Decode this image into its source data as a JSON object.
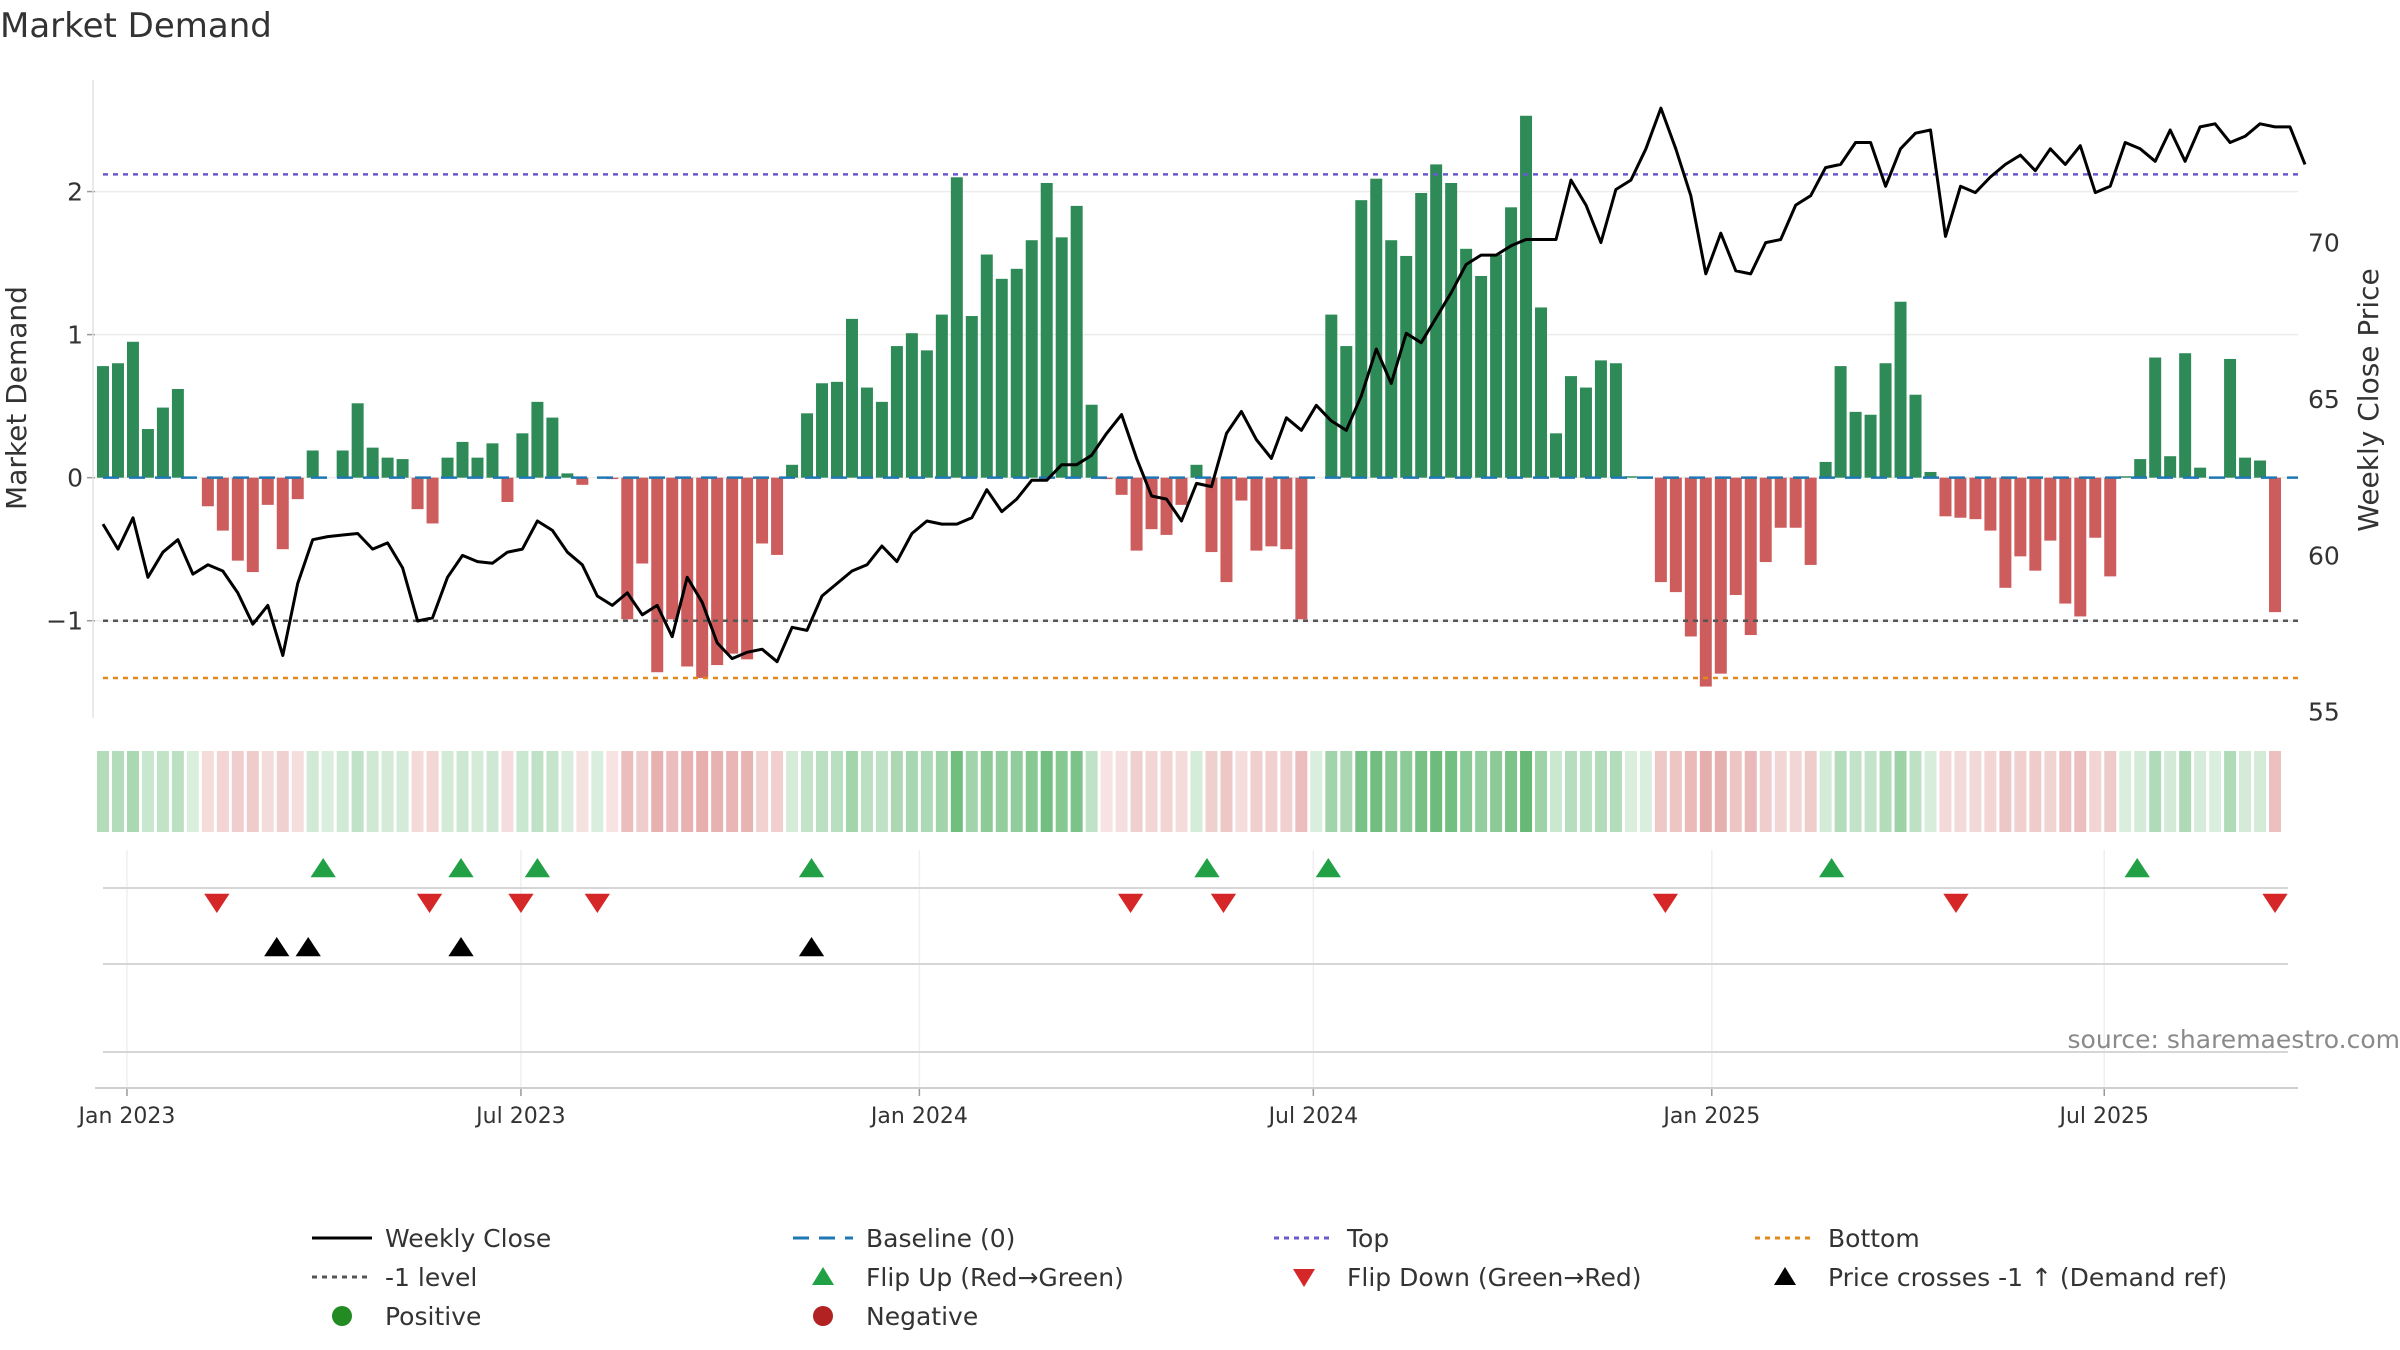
{
  "chart_data": {
    "type": "bar",
    "title": "Market Demand",
    "ylabel_left": "Market Demand",
    "ylabel_right": "Weekly Close Price",
    "source": "source: sharemaestro.com",
    "colors": {
      "positive": "#2e8b57",
      "negative": "#cd5c5c",
      "close": "#000000",
      "baseline": "#1f77b4",
      "top": "#6a5acd",
      "minus_one": "#555555",
      "bottom": "#e08a1e",
      "flip_up": "#22a046",
      "flip_down": "#d62728",
      "cross": "#000000"
    },
    "y_left": {
      "min": -1.68,
      "max": 2.78,
      "ticks": [
        -1,
        0,
        1,
        2
      ],
      "tick_labels": [
        "−1",
        "0",
        "1",
        "2"
      ]
    },
    "y_right": {
      "min": 54.8,
      "max": 75.2,
      "ticks": [
        55,
        60,
        65,
        70
      ],
      "tick_labels": [
        "55",
        "60",
        "65",
        "70"
      ]
    },
    "week_range": [
      0,
      146
    ],
    "x_ticks": [
      {
        "label": "Jan 2023",
        "week": 1.6
      },
      {
        "label": "Jul 2023",
        "week": 27.9
      },
      {
        "label": "Jan 2024",
        "week": 54.5
      },
      {
        "label": "Jul 2024",
        "week": 80.8
      },
      {
        "label": "Jan 2025",
        "week": 107.4
      },
      {
        "label": "Jul 2025",
        "week": 133.6
      }
    ],
    "top_level": 2.12,
    "bottom_level": -1.4,
    "minus_one_level": -1.0,
    "demand": [
      0.78,
      0.8,
      0.95,
      0.34,
      0.49,
      0.62,
      0,
      -0.2,
      -0.37,
      -0.58,
      -0.66,
      -0.19,
      -0.5,
      -0.15,
      0.19,
      0,
      0.19,
      0.52,
      0.21,
      0.14,
      0.13,
      -0.22,
      -0.32,
      0.14,
      0.25,
      0.14,
      0.24,
      -0.17,
      0.31,
      0.53,
      0.42,
      0.03,
      -0.05,
      0,
      -0.01,
      -0.99,
      -0.6,
      -1.36,
      -0.99,
      -1.32,
      -1.4,
      -1.31,
      -1.23,
      -1.27,
      -0.46,
      -0.54,
      0.09,
      0.45,
      0.66,
      0.67,
      1.11,
      0.63,
      0.53,
      0.92,
      1.01,
      0.89,
      1.14,
      2.1,
      1.13,
      1.56,
      1.39,
      1.46,
      1.66,
      2.06,
      1.68,
      1.9,
      0.51,
      -0.01,
      -0.12,
      -0.51,
      -0.36,
      -0.4,
      -0.19,
      0.09,
      -0.52,
      -0.73,
      -0.16,
      -0.51,
      -0.48,
      -0.5,
      -0.99,
      0,
      1.14,
      0.92,
      1.94,
      2.09,
      1.66,
      1.55,
      1.99,
      2.19,
      2.06,
      1.6,
      1.41,
      1.56,
      1.89,
      2.53,
      1.19,
      0.31,
      0.71,
      0.63,
      0.82,
      0.8,
      0.01,
      0,
      -0.73,
      -0.8,
      -1.11,
      -1.46,
      -1.37,
      -0.82,
      -1.1,
      -0.59,
      -0.35,
      -0.35,
      -0.61,
      0.11,
      0.78,
      0.46,
      0.44,
      0.8,
      1.23,
      0.58,
      0.04,
      -0.27,
      -0.28,
      -0.29,
      -0.37,
      -0.77,
      -0.55,
      -0.65,
      -0.44,
      -0.88,
      -0.97,
      -0.42,
      -0.69,
      0.01,
      0.13,
      0.84,
      0.15,
      0.87,
      0.07,
      0,
      0.83,
      0.14,
      0.12,
      -0.94
    ],
    "close": [
      61.0,
      60.2,
      61.2,
      59.3,
      60.1,
      60.5,
      59.4,
      59.7,
      59.5,
      58.8,
      57.8,
      58.4,
      56.8,
      59.1,
      60.5,
      60.6,
      60.65,
      60.7,
      60.2,
      60.4,
      59.6,
      57.9,
      58.0,
      59.3,
      60.0,
      59.8,
      59.75,
      60.1,
      60.2,
      61.1,
      60.8,
      60.1,
      59.7,
      58.7,
      58.4,
      58.8,
      58.1,
      58.4,
      57.4,
      59.3,
      58.5,
      57.2,
      56.7,
      56.9,
      57.0,
      56.6,
      57.7,
      57.6,
      58.7,
      59.1,
      59.5,
      59.7,
      60.3,
      59.8,
      60.7,
      61.1,
      61.0,
      61.0,
      61.2,
      62.1,
      61.4,
      61.8,
      62.4,
      62.4,
      62.9,
      62.9,
      63.2,
      63.9,
      64.5,
      63.1,
      61.9,
      61.8,
      61.1,
      62.3,
      62.2,
      63.9,
      64.6,
      63.7,
      63.1,
      64.4,
      64.0,
      64.8,
      64.3,
      64.0,
      65.1,
      66.6,
      65.5,
      67.1,
      66.8,
      67.6,
      68.4,
      69.3,
      69.6,
      69.6,
      69.9,
      70.1,
      70.1,
      70.1,
      72.0,
      71.2,
      70.0,
      71.7,
      72.0,
      73.0,
      74.3,
      73.0,
      71.5,
      69.0,
      70.3,
      69.1,
      69.0,
      70.0,
      70.1,
      71.2,
      71.5,
      72.4,
      72.5,
      73.2,
      73.2,
      71.8,
      73.0,
      73.5,
      73.6,
      70.2,
      71.8,
      71.6,
      72.1,
      72.5,
      72.8,
      72.3,
      73.0,
      72.5,
      73.1,
      71.6,
      71.8,
      73.2,
      73.0,
      72.6,
      73.6,
      72.6,
      73.7,
      73.8,
      73.2,
      73.4,
      73.8,
      73.7,
      73.7,
      72.5
    ],
    "flip_up_weeks": [
      14.7,
      23.9,
      29.0,
      47.3,
      73.7,
      81.8,
      115.4,
      135.8
    ],
    "flip_down_weeks": [
      7.6,
      21.8,
      27.9,
      33.0,
      68.6,
      74.8,
      104.3,
      123.7,
      145.0
    ],
    "cross_weeks": [
      11.6,
      13.7,
      23.9,
      47.3
    ],
    "legend": [
      {
        "label": "Weekly Close",
        "type": "line-solid",
        "color": "#000000"
      },
      {
        "label": "Baseline (0)",
        "type": "line-dashed",
        "color": "#1f77b4"
      },
      {
        "label": "Top",
        "type": "line-dotted",
        "color": "#6a5acd"
      },
      {
        "label": "Bottom",
        "type": "line-dotted",
        "color": "#e08a1e"
      },
      {
        "label": "-1 level",
        "type": "line-dotted",
        "color": "#555555"
      },
      {
        "label": "Flip Up (Red→Green)",
        "type": "tri-up",
        "color": "#22a046"
      },
      {
        "label": "Flip Down (Green→Red)",
        "type": "tri-down",
        "color": "#d62728"
      },
      {
        "label": "Price crosses -1 ↑ (Demand ref)",
        "type": "tri-up",
        "color": "#000000"
      },
      {
        "label": "Positive",
        "type": "dot",
        "color": "#228b22"
      },
      {
        "label": "Negative",
        "type": "dot",
        "color": "#b22222"
      }
    ]
  }
}
